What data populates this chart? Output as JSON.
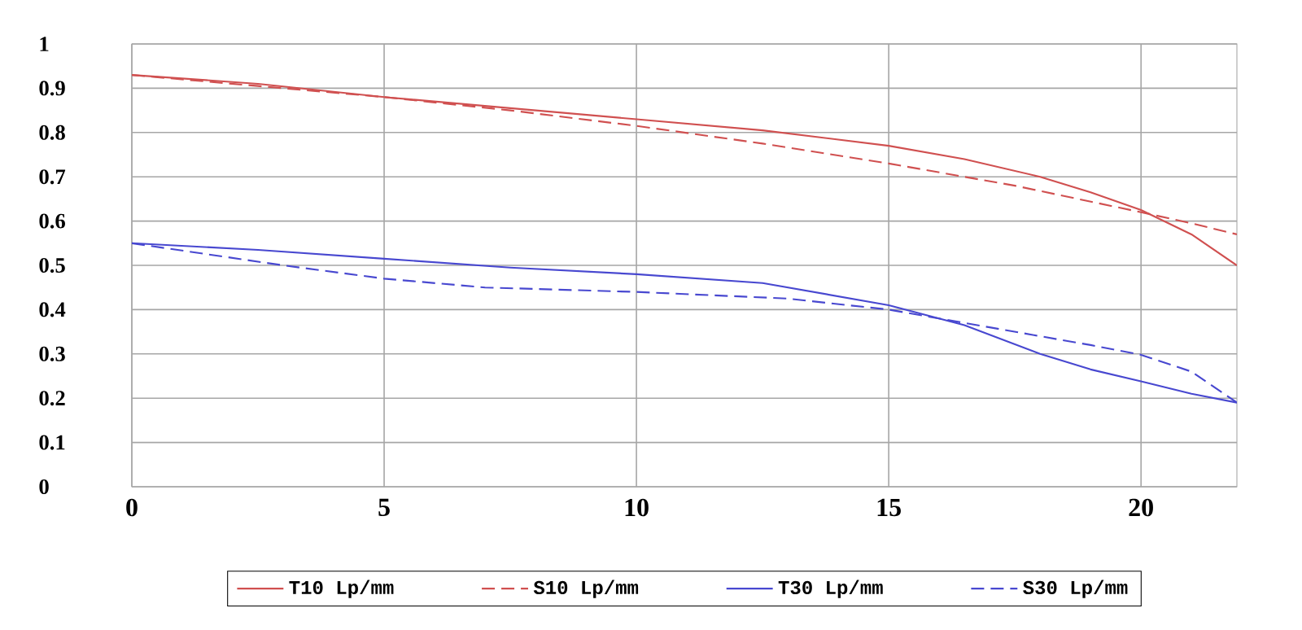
{
  "chart_data": {
    "type": "line",
    "xlim": [
      0,
      21.9
    ],
    "ylim": [
      0,
      1
    ],
    "xticks": [
      0,
      5,
      10,
      15,
      20
    ],
    "yticks": [
      0,
      0.1,
      0.2,
      0.3,
      0.4,
      0.5,
      0.6,
      0.7,
      0.8,
      0.9,
      1
    ],
    "grid": true,
    "legend": "bottom",
    "series": [
      {
        "name": "T10 Lp/mm",
        "color": "#d05050",
        "line_style": "solid",
        "x": [
          0,
          2.5,
          5,
          7.5,
          10,
          12.5,
          15,
          16.5,
          18,
          19,
          20,
          21,
          21.9
        ],
        "values": [
          0.93,
          0.91,
          0.88,
          0.855,
          0.83,
          0.805,
          0.77,
          0.74,
          0.7,
          0.665,
          0.625,
          0.57,
          0.5
        ]
      },
      {
        "name": "S10 Lp/mm",
        "color": "#d05050",
        "line_style": "dashed",
        "x": [
          0,
          2.5,
          5,
          7.5,
          10,
          12.5,
          15,
          17.5,
          20,
          21,
          21.9
        ],
        "values": [
          0.93,
          0.905,
          0.88,
          0.85,
          0.815,
          0.775,
          0.73,
          0.68,
          0.62,
          0.595,
          0.57
        ]
      },
      {
        "name": "T30 Lp/mm",
        "color": "#4848d0",
        "line_style": "solid",
        "x": [
          0,
          2.5,
          5,
          7.5,
          10,
          12.5,
          15,
          16.5,
          18,
          19,
          20,
          21,
          21.9
        ],
        "values": [
          0.55,
          0.535,
          0.515,
          0.495,
          0.48,
          0.46,
          0.41,
          0.365,
          0.3,
          0.265,
          0.238,
          0.21,
          0.19
        ]
      },
      {
        "name": "S30 Lp/mm",
        "color": "#4848d0",
        "line_style": "dashed",
        "x": [
          0,
          1.5,
          3,
          5,
          7,
          10,
          13,
          15,
          17,
          19,
          20,
          21,
          21.9
        ],
        "values": [
          0.55,
          0.525,
          0.5,
          0.47,
          0.45,
          0.44,
          0.425,
          0.4,
          0.36,
          0.32,
          0.298,
          0.26,
          0.19
        ]
      }
    ]
  }
}
